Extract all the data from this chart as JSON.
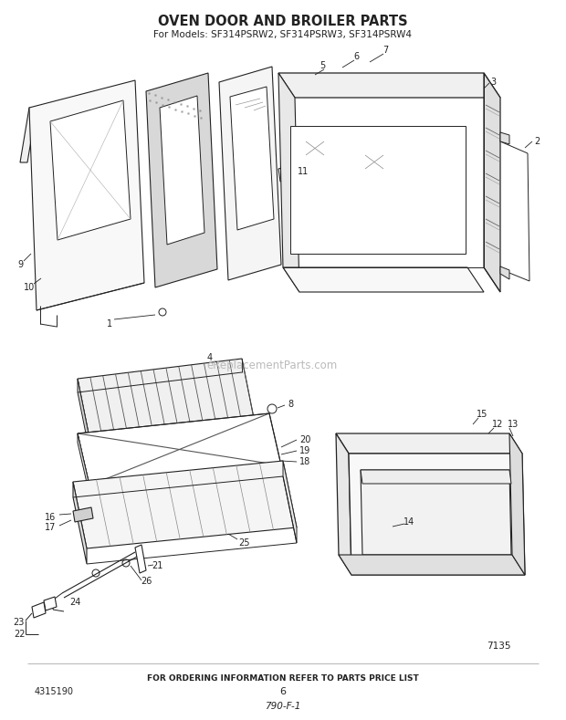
{
  "title": "OVEN DOOR AND BROILER PARTS",
  "subtitle": "For Models: SF314PSRW2, SF314PSRW3, SF314PSRW4",
  "footer_text": "FOR ORDERING INFORMATION REFER TO PARTS PRICE LIST",
  "footer_number": "6",
  "part_number_left": "4315190",
  "part_number_right": "7135",
  "doc_number": "790-F-1",
  "background_color": "#ffffff",
  "line_color": "#222222",
  "watermark_text": "eReplacementParts.com",
  "watermark_color": "#bbbbbb",
  "fig_width": 6.2,
  "fig_height": 7.89,
  "dpi": 100
}
